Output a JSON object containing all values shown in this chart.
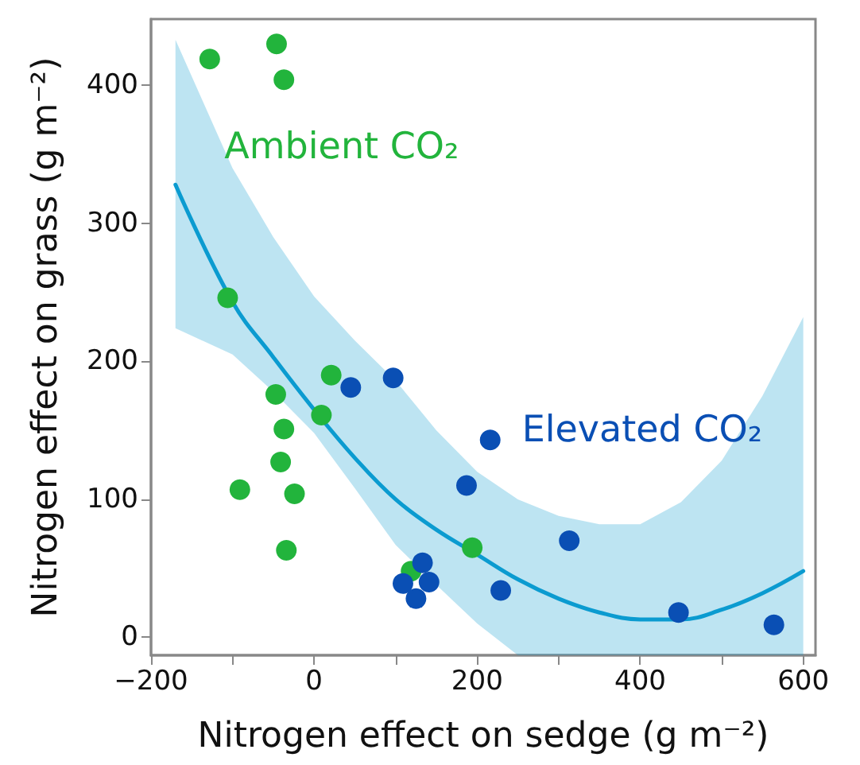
{
  "chart_data": {
    "type": "scatter",
    "xlabel": "Nitrogen effect on sedge (g m⁻²)",
    "ylabel": "Nitrogen effect on grass (g m⁻²)",
    "xlim": [
      -200,
      615
    ],
    "ylim": [
      -13,
      448
    ],
    "xticks": [
      -200,
      {
        "value": -100,
        "label": null
      },
      0,
      {
        "value": 100,
        "label": null
      },
      200,
      {
        "value": 300,
        "label": null
      },
      400,
      {
        "value": 500,
        "label": null
      },
      600
    ],
    "yticks": [
      0,
      100,
      200,
      300,
      400
    ],
    "grid": false,
    "legend": false,
    "marker": "circle",
    "series": [
      {
        "name": "Ambient CO₂",
        "color": "#22b43c",
        "x": [
          -128,
          -46,
          -37,
          -106,
          21,
          -47,
          9,
          -37,
          -41,
          -91,
          -24,
          -34,
          119,
          194
        ],
        "values": [
          419,
          430,
          404,
          246,
          190,
          176,
          161,
          151,
          127,
          107,
          104,
          63,
          48,
          65
        ]
      },
      {
        "name": "Elevated CO₂",
        "color": "#0a4fb4",
        "x": [
          45,
          97,
          187,
          216,
          133,
          109,
          125,
          141,
          229,
          313,
          447,
          564
        ],
        "values": [
          181,
          188,
          110,
          143,
          54,
          39,
          28,
          40,
          34,
          70,
          18,
          9
        ]
      },
      {
        "type": "line",
        "marker": "none",
        "color": "#0b9bd0",
        "x": [
          -170,
          -100,
          -50,
          0,
          50,
          100,
          150,
          200,
          250,
          300,
          350,
          400,
          450,
          500,
          550,
          600
        ],
        "values": [
          328,
          243,
          203,
          165,
          130,
          100,
          78,
          60,
          42,
          28,
          18,
          13,
          13,
          20,
          32,
          48
        ],
        "lower": [
          224,
          205,
          178,
          148,
          108,
          67,
          38,
          10,
          -13,
          -13,
          -13,
          -13,
          -13,
          -13,
          -13,
          -13
        ],
        "upper": [
          433,
          340,
          290,
          247,
          215,
          186,
          150,
          120,
          100,
          88,
          82,
          82,
          98,
          128,
          175,
          232
        ]
      }
    ]
  }
}
